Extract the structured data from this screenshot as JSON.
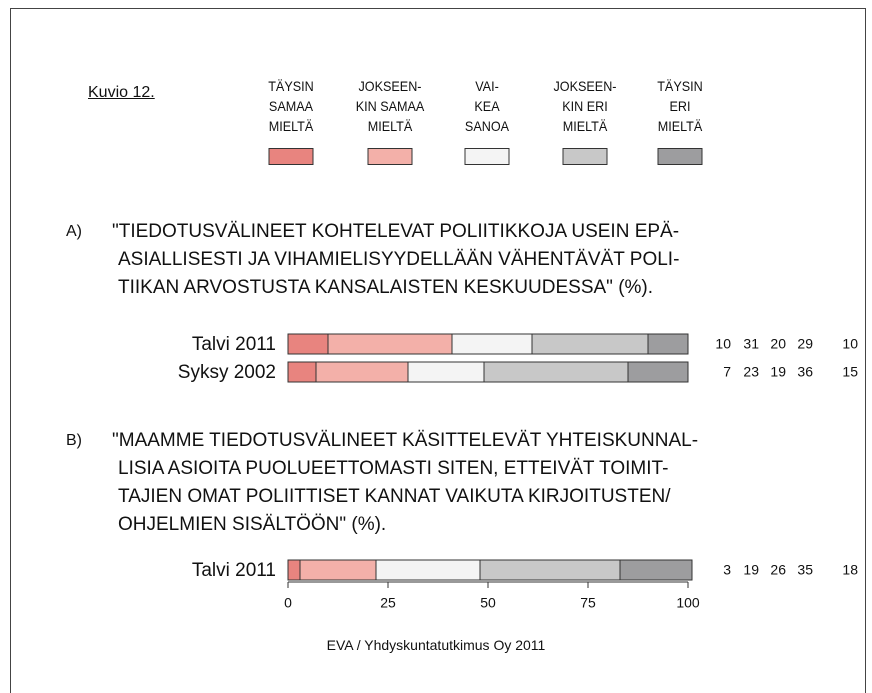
{
  "chart_data": {
    "type": "bar",
    "orientation": "horizontal",
    "stacked": true,
    "figure_label": "Kuvio 12.",
    "source": "EVA / Yhdyskuntatutkimus Oy 2011",
    "series": [
      {
        "name": "TÄYSIN\nSAMAA\nMIELTÄ",
        "color": "#e8847f"
      },
      {
        "name": "JOKSEEN-\nKIN SAMAA\nMIELTÄ",
        "color": "#f3b0a9"
      },
      {
        "name": "VAI-\nKEA\nSANOA",
        "color": "#f4f4f4"
      },
      {
        "name": "JOKSEEN-\nKIN ERI\nMIELTÄ",
        "color": "#c8c8c8"
      },
      {
        "name": "TÄYSIN\nERI\nMIELTÄ",
        "color": "#9d9d9f"
      }
    ],
    "xlim": [
      0,
      100
    ],
    "xticks": [
      0,
      25,
      50,
      75,
      100
    ],
    "panels": [
      {
        "label": "A)",
        "title": "\"TIEDOTUSVÄLINEET KOHTELEVAT POLIITIKKOJA USEIN EPÄ-\nASIALLISESTI JA VIHAMIELISYYDELLÄÄN VÄHENTÄVÄT POLI-\nTIIKAN ARVOSTUSTA KANSALAISTEN KESKUUDESSA\" (%).",
        "categories": [
          "Talvi 2011",
          "Syksy 2002"
        ],
        "values": [
          [
            10,
            7
          ],
          [
            31,
            23
          ],
          [
            20,
            19
          ],
          [
            29,
            36
          ],
          [
            10,
            15
          ]
        ]
      },
      {
        "label": "B)",
        "title": "\"MAAMME TIEDOTUSVÄLINEET KÄSITTELEVÄT YHTEISKUNNAL-\nLISIA ASIOITA PUOLUEETTOMASTI SITEN, ETTEIVÄT TOIMIT-\nTAJIEN OMAT POLIITTISET KANNAT VAIKUTA KIRJOITUSTEN/\nOHJELMIEN SISÄLTÖÖN\" (%).",
        "categories": [
          "Talvi 2011"
        ],
        "values": [
          [
            3
          ],
          [
            19
          ],
          [
            26
          ],
          [
            35
          ],
          [
            18
          ]
        ]
      }
    ]
  }
}
